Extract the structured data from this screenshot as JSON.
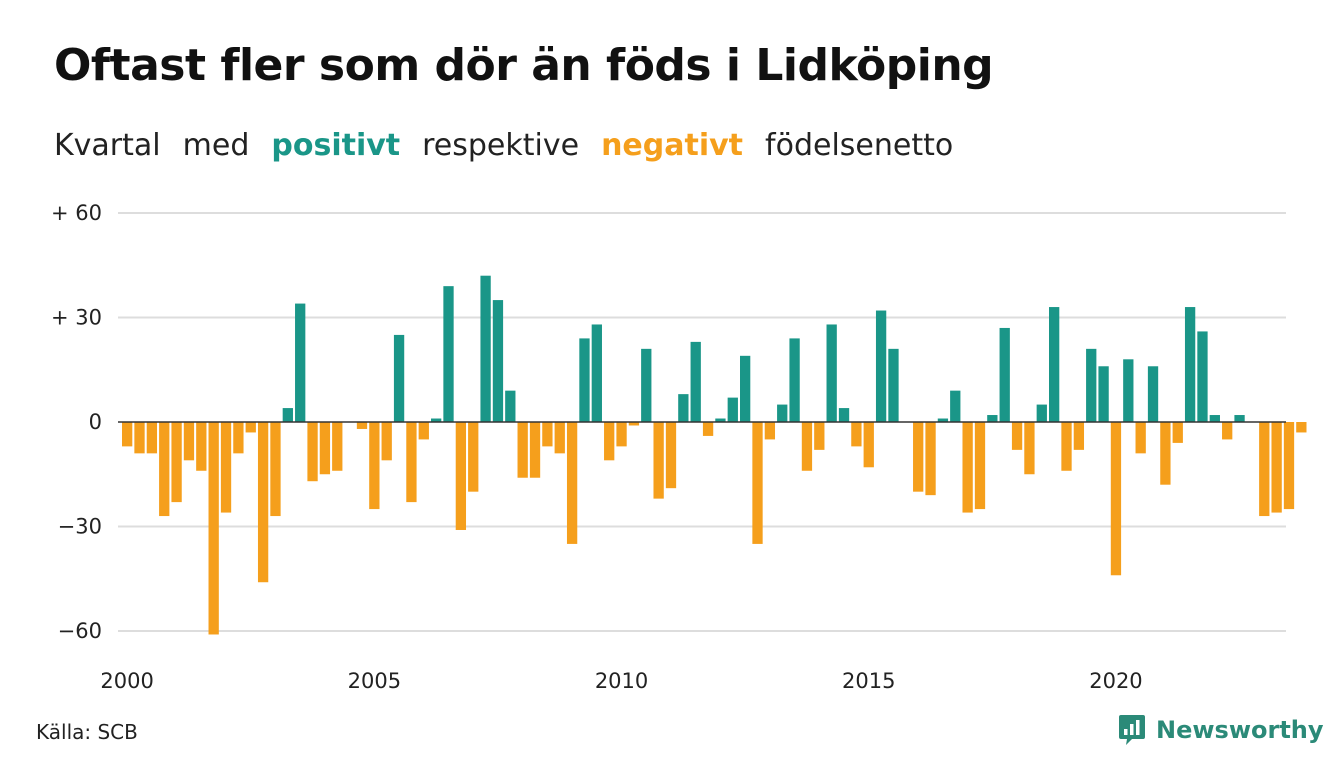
{
  "title": "Oftast fler som dör än föds i Lidköping",
  "subtitle": {
    "word1": "Kvartal",
    "word2": "med",
    "positive": "positivt",
    "word3": "respektive",
    "negative": "negativt",
    "word4": "födelsenetto"
  },
  "source": "Källa: SCB",
  "brand": {
    "name": "Newsworthy",
    "icon": "newsworthy-logo-icon"
  },
  "colors": {
    "positive": "#1a9688",
    "negative": "#f59f1c",
    "grid": "#dddddd",
    "zero": "#333333",
    "brand": "#2b8a78"
  },
  "chart_data": {
    "type": "bar",
    "ylim": [
      -60,
      60
    ],
    "yticks": [
      {
        "value": 60,
        "label": "+ 60"
      },
      {
        "value": 30,
        "label": "+ 30"
      },
      {
        "value": 0,
        "label": "0"
      },
      {
        "value": -30,
        "label": "−30"
      },
      {
        "value": -60,
        "label": "−60"
      }
    ],
    "xticks": [
      {
        "year": 2000,
        "label": "2000"
      },
      {
        "year": 2005,
        "label": "2005"
      },
      {
        "year": 2010,
        "label": "2010"
      },
      {
        "year": 2015,
        "label": "2015"
      },
      {
        "year": 2020,
        "label": "2020"
      }
    ],
    "start_year": 2000,
    "start_quarter": 1,
    "grid": true,
    "values": [
      -7,
      -9,
      -9,
      -27,
      -23,
      -11,
      -14,
      -61,
      -26,
      -9,
      -3,
      -46,
      -27,
      4,
      34,
      -17,
      -15,
      -14,
      0,
      -2,
      -25,
      -11,
      25,
      -23,
      -5,
      1,
      39,
      -31,
      -20,
      42,
      35,
      9,
      -16,
      -16,
      -7,
      -9,
      -35,
      24,
      28,
      -11,
      -7,
      -1,
      21,
      -22,
      -19,
      8,
      23,
      -4,
      1,
      7,
      19,
      -35,
      -5,
      5,
      24,
      -14,
      -8,
      28,
      4,
      -7,
      -13,
      32,
      21,
      0,
      -20,
      -21,
      1,
      9,
      -26,
      -25,
      2,
      27,
      -8,
      -15,
      5,
      33,
      -14,
      -8,
      21,
      16,
      -44,
      18,
      -9,
      16,
      -18,
      -6,
      33,
      26,
      2,
      -5,
      2,
      0,
      -27,
      -26,
      -25,
      -3
    ]
  }
}
